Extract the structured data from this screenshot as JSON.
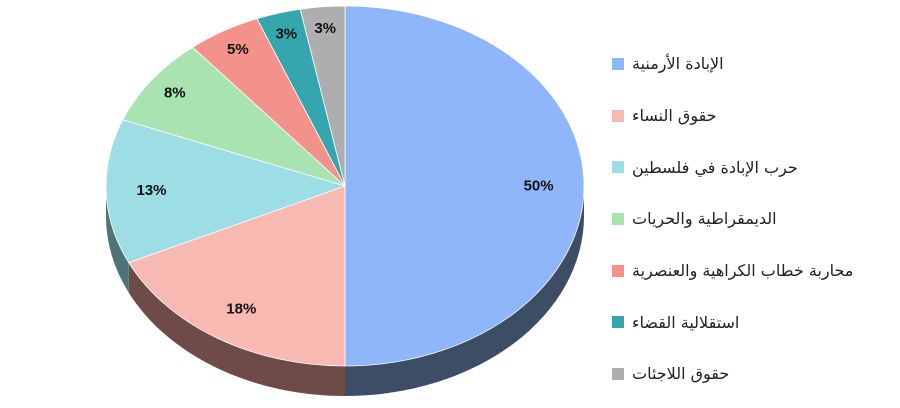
{
  "chart_data": {
    "type": "pie",
    "style": "3d",
    "legend_position": "right",
    "slices": [
      {
        "label": "الإبادة الأرمنية",
        "value": 50,
        "display": "50%",
        "color": "#8fb5fa",
        "side_color": "#3d4d66"
      },
      {
        "label": "حقوق النساء",
        "value": 18,
        "display": "18%",
        "color": "#f8b9b3",
        "side_color": "#6e4b46"
      },
      {
        "label": "حرب الإبادة في فلسطين",
        "value": 13,
        "display": "13%",
        "color": "#9ddde4",
        "side_color": "#4d7478"
      },
      {
        "label": "الديمقراطية والحريات",
        "value": 8,
        "display": "8%",
        "color": "#a9e3b1",
        "side_color": "#557a5a"
      },
      {
        "label": "محاربة خطاب الكراهية والعنصرية",
        "value": 5,
        "display": "5%",
        "color": "#f2928a",
        "side_color": "#7a433d"
      },
      {
        "label": "استقلالية القضاء",
        "value": 3,
        "display": "3%",
        "color": "#36a6ae",
        "side_color": "#1d5a5e"
      },
      {
        "label": "حقوق اللاجئات",
        "value": 3,
        "display": "3%",
        "color": "#aeaeae",
        "side_color": "#555555"
      }
    ]
  }
}
